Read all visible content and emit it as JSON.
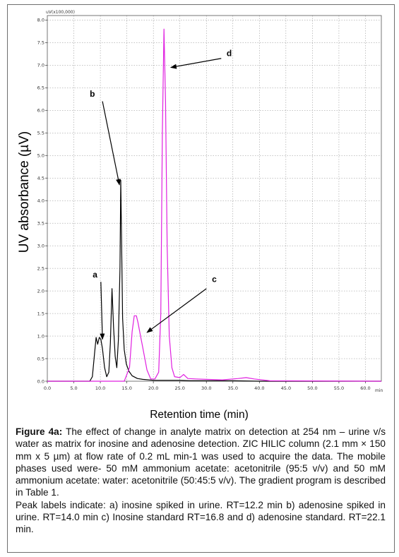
{
  "chart_data": {
    "type": "line",
    "ylabel": "UV absorbance (µV)",
    "xlabel": "Retention time (min)",
    "y_unit_label": "uV(x100,000)",
    "x_unit_label": "min",
    "xlim": [
      0,
      63
    ],
    "ylim": [
      0,
      8.1
    ],
    "x_ticks": [
      0,
      5,
      10,
      15,
      20,
      25,
      30,
      35,
      40,
      45,
      50,
      55,
      60
    ],
    "x_tick_labels": [
      "0.0",
      "5.0",
      "10.0",
      "15.0",
      "20.0",
      "25.0",
      "30.0",
      "35.0",
      "40.0",
      "45.0",
      "50.0",
      "55.0",
      "60.0"
    ],
    "y_ticks": [
      0,
      0.5,
      1,
      1.5,
      2,
      2.5,
      3,
      3.5,
      4,
      4.5,
      5,
      5.5,
      6,
      6.5,
      7,
      7.5,
      8
    ],
    "y_tick_labels": [
      "0.0",
      "0.5",
      "1.0",
      "1.5",
      "2.0",
      "2.5",
      "3.0",
      "3.5",
      "4.0",
      "4.5",
      "5.0",
      "5.5",
      "6.0",
      "6.5",
      "7.0",
      "7.5",
      "8.0"
    ],
    "grid": true,
    "series": [
      {
        "color": "#000000",
        "x": [
          0,
          8.0,
          8.5,
          8.9,
          9.2,
          9.5,
          9.8,
          10.1,
          10.4,
          10.8,
          11.2,
          11.6,
          11.9,
          12.2,
          12.5,
          12.8,
          13.1,
          13.4,
          13.7,
          13.85,
          14.0,
          14.2,
          14.5,
          14.9,
          15.4,
          16.0,
          17.0,
          18.0,
          20.0,
          22.0,
          24.0,
          25.0,
          27.0,
          30.0,
          35.0,
          40.0,
          50.0,
          63.0
        ],
        "y": [
          0,
          0,
          0.1,
          0.6,
          0.97,
          0.82,
          0.97,
          0.93,
          0.72,
          0.3,
          0.1,
          0.2,
          0.85,
          2.05,
          1.2,
          0.55,
          0.3,
          0.9,
          2.5,
          4.45,
          3.2,
          1.4,
          0.7,
          0.38,
          0.22,
          0.12,
          0.06,
          0.04,
          0.02,
          0.02,
          0.02,
          0.02,
          0.01,
          0.01,
          0.01,
          0.0,
          0.0,
          0.0
        ]
      },
      {
        "color": "#e020e0",
        "x": [
          0,
          14.5,
          15.5,
          16.0,
          16.4,
          16.8,
          17.1,
          17.5,
          18.0,
          18.8,
          19.5,
          20.3,
          21.0,
          21.4,
          21.7,
          22.0,
          22.3,
          22.6,
          23.0,
          23.5,
          24.0,
          25.0,
          25.7,
          26.5,
          28.0,
          30.0,
          33.0,
          36.0,
          37.5,
          39.0,
          42.0,
          63.0
        ],
        "y": [
          0,
          0,
          0.3,
          1.1,
          1.45,
          1.45,
          1.3,
          1.05,
          0.75,
          0.25,
          0.05,
          0.05,
          0.2,
          1.5,
          5.5,
          7.8,
          6.2,
          3.0,
          1.0,
          0.3,
          0.1,
          0.08,
          0.15,
          0.06,
          0.05,
          0.04,
          0.03,
          0.06,
          0.08,
          0.05,
          0.01,
          0.0
        ]
      }
    ],
    "annotations": [
      {
        "text": "a",
        "x": 9.0,
        "y": 2.3,
        "arrow_from": [
          10.1,
          2.2
        ],
        "arrow_to": [
          10.4,
          0.93
        ]
      },
      {
        "text": "b",
        "x": 8.5,
        "y": 6.3,
        "arrow_from": [
          10.4,
          6.2
        ],
        "arrow_to": [
          13.6,
          4.35
        ]
      },
      {
        "text": "c",
        "x": 31.5,
        "y": 2.2,
        "arrow_from": [
          30.0,
          2.05
        ],
        "arrow_to": [
          18.8,
          1.08
        ]
      },
      {
        "text": "d",
        "x": 34.3,
        "y": 7.2,
        "arrow_from": [
          32.8,
          7.15
        ],
        "arrow_to": [
          23.3,
          6.95
        ]
      }
    ]
  },
  "caption": {
    "figure_label": "Figure 4a:",
    "text": "The effect of change in analyte matrix on detection at 254 nm – urine v/s water as matrix for inosine and adenosine detection. ZIC HILIC column (2.1 mm × 150 mm x 5 µm) at flow rate of 0.2 mL min-1 was used to acquire the data. The mobile phases used were- 50 mM ammonium acetate: acetonitrile (95:5 v/v) and 50 mM ammonium acetate: water: acetonitrile (50:45:5 v/v). The gradient program is described in Table 1.",
    "peak_text": "Peak labels indicate: a) inosine spiked in urine. RT=12.2 min b) adenosine spiked in urine. RT=14.0 min c) Inosine standard RT=16.8 and d) adenosine standard. RT=22.1 min."
  }
}
